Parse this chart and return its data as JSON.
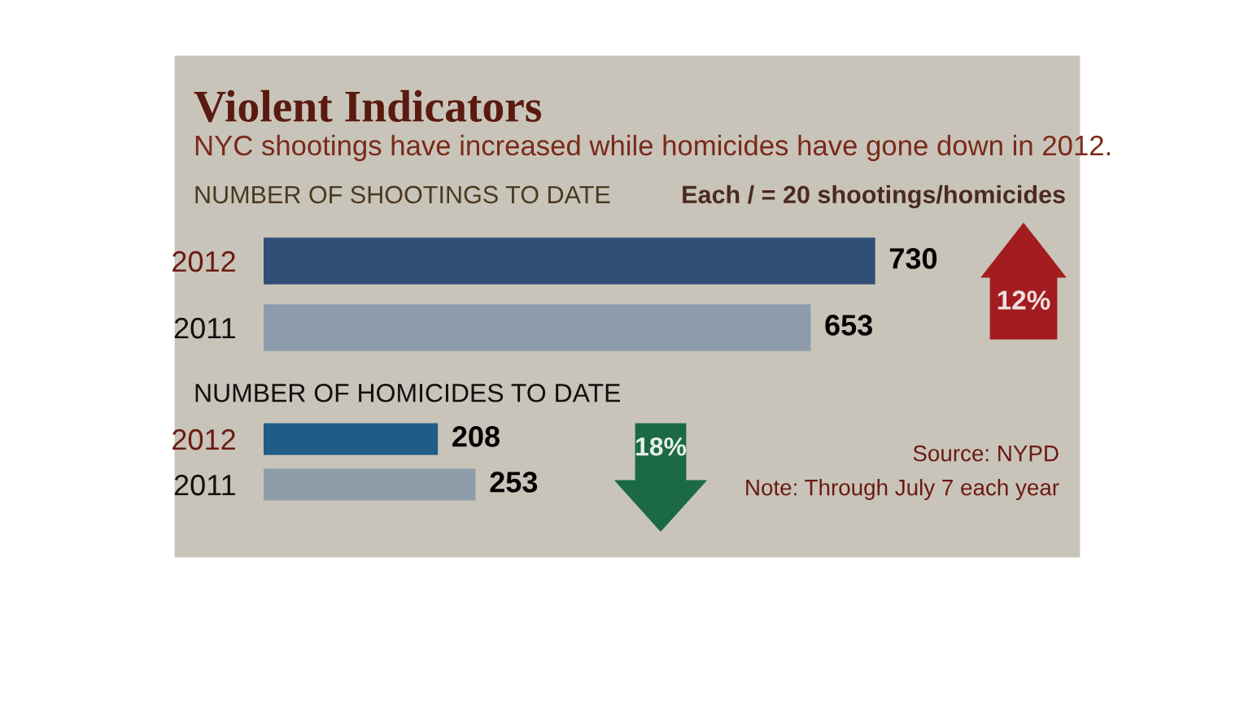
{
  "chart_data": [
    {
      "type": "bar",
      "orientation": "horizontal",
      "title": "Violent Indicators",
      "subtitle": "NYC shootings have increased while homicides have gone down in 2012.",
      "categories": [
        "2012",
        "2011"
      ],
      "values": [
        730,
        653
      ],
      "colors": [
        "#2f4f75",
        "#8d9bac"
      ],
      "data_labels": true,
      "grid": false,
      "legend": false,
      "annotations": [
        "NUMBER OF SHOOTINGS TO DATE",
        "Each / = 20 shootings/homicides",
        "12%"
      ]
    },
    {
      "type": "bar",
      "orientation": "horizontal",
      "title": "NUMBER OF HOMICIDES TO DATE",
      "categories": [
        "2012",
        "2011"
      ],
      "values": [
        208,
        253
      ],
      "colors": [
        "#1f5d86",
        "#8f9dab"
      ],
      "data_labels": true,
      "grid": false,
      "legend": false,
      "annotations": [
        "18%",
        "Source: NYPD",
        "Note: Through July 7 each year"
      ]
    }
  ]
}
